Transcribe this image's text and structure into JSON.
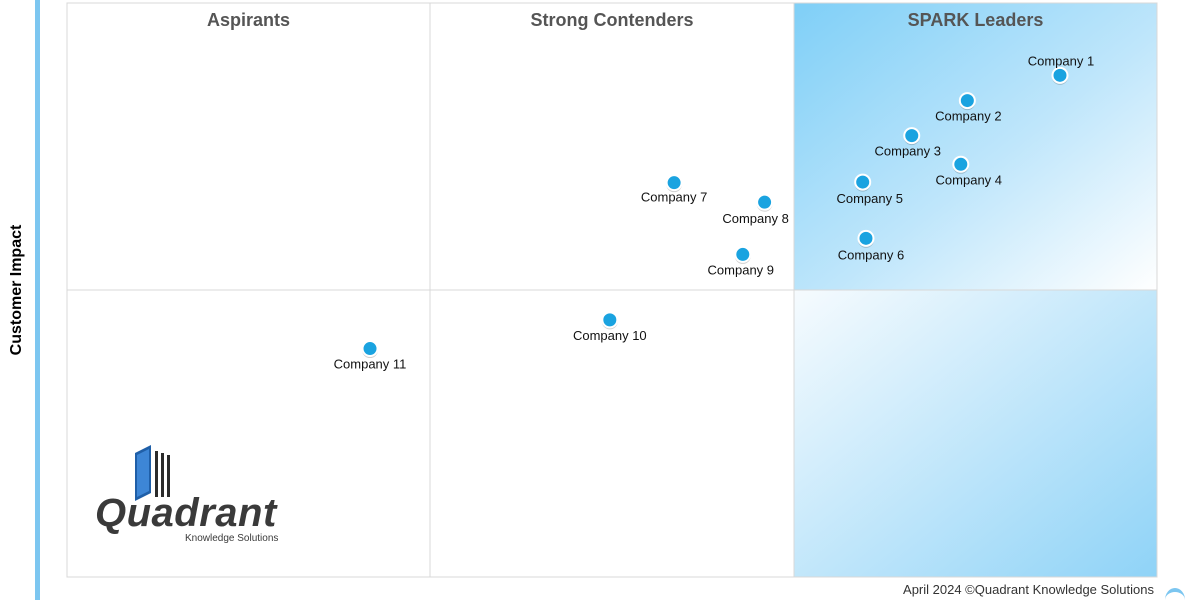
{
  "chart_data": {
    "type": "scatter",
    "y_axis_label": "Customer Impact",
    "quadrants": [
      "Aspirants",
      "Strong Contenders",
      "SPARK Leaders"
    ],
    "points": [
      {
        "label": "Company 1",
        "x": 0.911,
        "y": 0.874
      },
      {
        "label": "Company 2",
        "x": 0.826,
        "y": 0.83
      },
      {
        "label": "Company 3",
        "x": 0.775,
        "y": 0.769
      },
      {
        "label": "Company 4",
        "x": 0.82,
        "y": 0.719
      },
      {
        "label": "Company 5",
        "x": 0.73,
        "y": 0.688
      },
      {
        "label": "Company 6",
        "x": 0.733,
        "y": 0.59
      },
      {
        "label": "Company 7",
        "x": 0.557,
        "y": 0.687
      },
      {
        "label": "Company 8",
        "x": 0.64,
        "y": 0.653
      },
      {
        "label": "Company 9",
        "x": 0.62,
        "y": 0.562
      },
      {
        "label": "Company 10",
        "x": 0.498,
        "y": 0.448
      },
      {
        "label": "Company 11",
        "x": 0.278,
        "y": 0.398
      }
    ],
    "legend": "none",
    "grid": true
  },
  "colors": {
    "point": "#1aa3e0",
    "point_outline": "#ffffff",
    "leaders_gradient_start": "#7fcff7",
    "leaders_gradient_end": "#ffffff",
    "grid_line": "#d8d8d8",
    "stripe": "#7cc6f0"
  },
  "logo": {
    "name": "Quadrant",
    "tagline": "Knowledge Solutions",
    "icon": "book-icon"
  },
  "footer": {
    "text": "April 2024 ©Quadrant Knowledge Solutions"
  }
}
